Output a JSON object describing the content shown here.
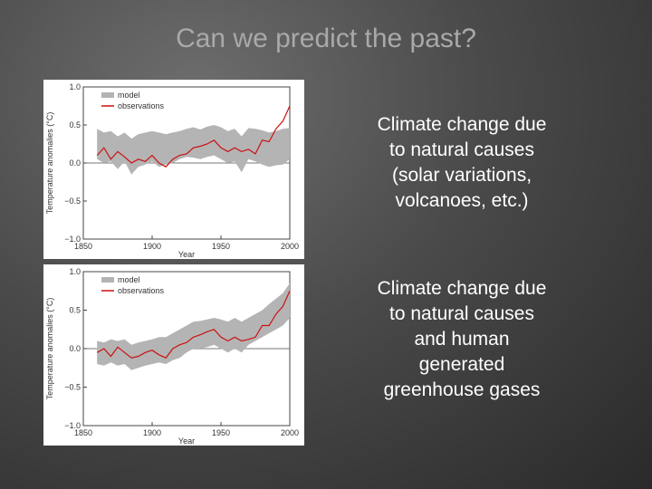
{
  "slide": {
    "title": "Can we predict the past?",
    "captions": [
      [
        "Climate change due",
        "to natural causes",
        "(solar variations,",
        "volcanoes, etc.)"
      ],
      [
        "Climate change due",
        "to natural causes",
        "and human",
        "generated",
        "greenhouse gases"
      ]
    ]
  },
  "colors": {
    "model": "#b4b4b4",
    "observations": "#cc1111"
  },
  "chart_data": [
    {
      "type": "area",
      "xlabel": "Year",
      "ylabel": "Temperature anomalies (°C)",
      "xlim": [
        1850,
        2000
      ],
      "ylim": [
        -1.0,
        1.0
      ],
      "xticks": [
        "1850",
        "1900",
        "1950",
        "2000"
      ],
      "yticks": [
        "1.0",
        "0.5",
        "0.0",
        "−0.5",
        "−1.0"
      ],
      "legend": [
        "model",
        "observations"
      ],
      "legend_position": "top-left",
      "x": [
        1860,
        1865,
        1870,
        1875,
        1880,
        1885,
        1890,
        1895,
        1900,
        1905,
        1910,
        1915,
        1920,
        1925,
        1930,
        1935,
        1940,
        1945,
        1950,
        1955,
        1960,
        1965,
        1970,
        1975,
        1980,
        1985,
        1990,
        1995,
        2000
      ],
      "series": [
        {
          "name": "model",
          "lower": [
            0.05,
            0.0,
            0.02,
            -0.08,
            0.02,
            -0.15,
            -0.05,
            -0.02,
            0.02,
            -0.05,
            -0.02,
            0.0,
            0.05,
            0.08,
            0.07,
            0.05,
            0.08,
            0.1,
            0.05,
            0.0,
            0.02,
            -0.12,
            0.05,
            0.02,
            -0.02,
            -0.05,
            -0.03,
            -0.02,
            0.05
          ],
          "upper": [
            0.45,
            0.4,
            0.42,
            0.35,
            0.4,
            0.32,
            0.38,
            0.4,
            0.42,
            0.4,
            0.38,
            0.4,
            0.42,
            0.45,
            0.47,
            0.44,
            0.48,
            0.5,
            0.47,
            0.42,
            0.45,
            0.35,
            0.46,
            0.45,
            0.43,
            0.4,
            0.42,
            0.45,
            0.46
          ]
        },
        {
          "name": "observations",
          "values": [
            0.1,
            0.2,
            0.05,
            0.15,
            0.08,
            0.0,
            0.05,
            0.02,
            0.1,
            0.0,
            -0.05,
            0.05,
            0.1,
            0.12,
            0.2,
            0.22,
            0.25,
            0.3,
            0.2,
            0.15,
            0.2,
            0.15,
            0.18,
            0.12,
            0.3,
            0.28,
            0.45,
            0.55,
            0.75
          ]
        }
      ]
    },
    {
      "type": "area",
      "xlabel": "Year",
      "ylabel": "Temperature anomalies (°C)",
      "xlim": [
        1850,
        2000
      ],
      "ylim": [
        -1.0,
        1.0
      ],
      "xticks": [
        "1850",
        "1900",
        "1950",
        "2000"
      ],
      "yticks": [
        "1.0",
        "0.5",
        "0.0",
        "−0.5",
        "−1.0"
      ],
      "legend": [
        "model",
        "observations"
      ],
      "legend_position": "top-left",
      "x": [
        1860,
        1865,
        1870,
        1875,
        1880,
        1885,
        1890,
        1895,
        1900,
        1905,
        1910,
        1915,
        1920,
        1925,
        1930,
        1935,
        1940,
        1945,
        1950,
        1955,
        1960,
        1965,
        1970,
        1975,
        1980,
        1985,
        1990,
        1995,
        2000
      ],
      "series": [
        {
          "name": "model",
          "lower": [
            -0.2,
            -0.22,
            -0.18,
            -0.22,
            -0.2,
            -0.28,
            -0.25,
            -0.22,
            -0.2,
            -0.18,
            -0.2,
            -0.15,
            -0.12,
            -0.05,
            0.0,
            0.0,
            0.02,
            0.05,
            0.0,
            -0.05,
            0.0,
            -0.05,
            0.05,
            0.1,
            0.15,
            0.2,
            0.25,
            0.3,
            0.4
          ],
          "upper": [
            0.1,
            0.08,
            0.12,
            0.1,
            0.12,
            0.05,
            0.08,
            0.1,
            0.12,
            0.15,
            0.15,
            0.2,
            0.25,
            0.3,
            0.35,
            0.36,
            0.38,
            0.4,
            0.38,
            0.35,
            0.4,
            0.35,
            0.4,
            0.45,
            0.5,
            0.58,
            0.65,
            0.72,
            0.85
          ]
        },
        {
          "name": "observations",
          "values": [
            -0.05,
            0.0,
            -0.1,
            0.02,
            -0.05,
            -0.12,
            -0.1,
            -0.05,
            -0.02,
            -0.08,
            -0.12,
            0.0,
            0.05,
            0.08,
            0.15,
            0.18,
            0.22,
            0.25,
            0.15,
            0.1,
            0.15,
            0.1,
            0.12,
            0.15,
            0.3,
            0.3,
            0.45,
            0.55,
            0.75
          ]
        }
      ]
    }
  ]
}
